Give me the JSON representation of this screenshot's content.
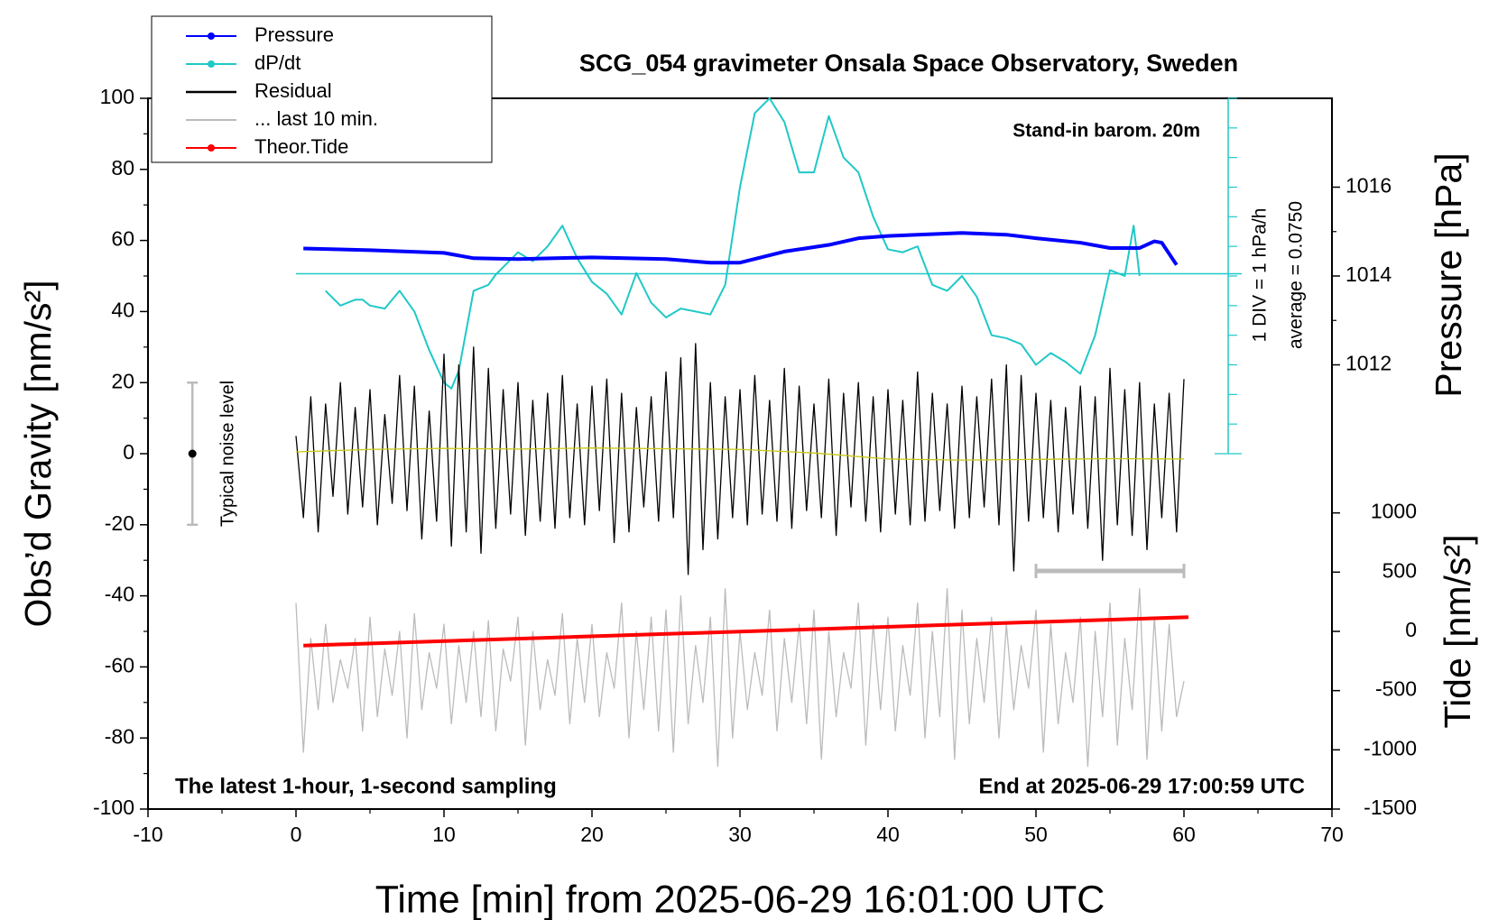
{
  "chart_data": {
    "type": "line",
    "title": "SCG_054 gravimeter Onsala Space Observatory, Sweden",
    "xlabel": "Time [min] from 2025-06-29 16:01:00 UTC",
    "ylabel": "Obs’d Gravity [nm/s²]",
    "y2label": "Pressure [hPa]",
    "y3label": "Tide [nm/s²]",
    "annotation_top": "Stand-in barom. 20m",
    "dpdt_scale_label": "1 DIV = 1 hPa/h",
    "dpdt_average_label": "average = 0.0750",
    "dpdt_average": 0.075,
    "dpdt_lim": [
      -6,
      6
    ],
    "dpdt_ticks": [
      -6,
      -5,
      -4,
      -3,
      -2,
      -1,
      0,
      1,
      2,
      3,
      4,
      5,
      6
    ],
    "footer_left": "The latest 1-hour, 1-second sampling",
    "footer_right": "End at 2025-06-29 17:00:59 UTC",
    "noise_bar": {
      "label": "Typical noise level",
      "x": -7,
      "value": 0,
      "error": 20
    },
    "window_bar": {
      "x": [
        50,
        60
      ],
      "y": -33
    },
    "xlim": [
      -10,
      70
    ],
    "xticks": [
      -10,
      0,
      10,
      20,
      30,
      40,
      50,
      60,
      70
    ],
    "ylim": [
      -100,
      100
    ],
    "yticks": [
      -100,
      -80,
      -60,
      -40,
      -20,
      0,
      20,
      40,
      60,
      80,
      100
    ],
    "y2lim": [
      1002,
      1018
    ],
    "y2ticks": [
      1012,
      1014,
      1016
    ],
    "y3lim": [
      -1500,
      4500
    ],
    "y3ticks": [
      -1500,
      -1000,
      -500,
      0,
      500,
      1000
    ],
    "x": [
      0,
      0.5,
      1,
      1.5,
      2,
      2.5,
      3,
      3.5,
      4,
      4.5,
      5,
      5.5,
      6,
      6.5,
      7,
      7.5,
      8,
      8.5,
      9,
      9.5,
      10,
      10.5,
      11,
      11.5,
      12,
      12.5,
      13,
      13.5,
      14,
      14.5,
      15,
      15.5,
      16,
      16.5,
      17,
      17.5,
      18,
      18.5,
      19,
      19.5,
      20,
      20.5,
      21,
      21.5,
      22,
      22.5,
      23,
      23.5,
      24,
      24.5,
      25,
      25.5,
      26,
      26.5,
      27,
      27.5,
      28,
      28.5,
      29,
      29.5,
      30,
      30.5,
      31,
      31.5,
      32,
      32.5,
      33,
      33.5,
      34,
      34.5,
      35,
      35.5,
      36,
      36.5,
      37,
      37.5,
      38,
      38.5,
      39,
      39.5,
      40,
      40.5,
      41,
      41.5,
      42,
      42.5,
      43,
      43.5,
      44,
      44.5,
      45,
      45.5,
      46,
      46.5,
      47,
      47.5,
      48,
      48.5,
      49,
      49.5,
      50,
      50.5,
      51,
      51.5,
      52,
      52.5,
      53,
      53.5,
      54,
      54.5,
      55,
      55.5,
      56,
      56.5,
      57,
      57.5,
      58,
      58.5,
      59,
      59.5,
      60
    ],
    "series": [
      {
        "name": "Pressure",
        "color": "#0000ff",
        "axis": "y2",
        "markers": true,
        "x": [
          0.5,
          5,
          10,
          12,
          15,
          20,
          25,
          28,
          30,
          33,
          36,
          38,
          40,
          42,
          45,
          48,
          50,
          53,
          55,
          56.5,
          57,
          58,
          58.5,
          59.5
        ],
        "values": [
          1014.62,
          1014.58,
          1014.52,
          1014.4,
          1014.38,
          1014.42,
          1014.38,
          1014.3,
          1014.3,
          1014.55,
          1014.7,
          1014.85,
          1014.9,
          1014.93,
          1014.97,
          1014.93,
          1014.85,
          1014.75,
          1014.63,
          1014.63,
          1014.63,
          1014.78,
          1014.75,
          1014.25
        ]
      },
      {
        "name": "dP/dt",
        "color": "#20c8c8",
        "axis": "dpdt",
        "markers": true,
        "x": [
          2,
          3,
          4,
          4.5,
          5,
          6,
          7,
          8,
          9,
          10,
          10.5,
          11,
          12,
          13,
          13.5,
          14,
          15,
          16,
          17,
          18,
          19,
          19.5,
          20,
          21,
          22,
          23,
          24,
          25,
          26,
          27,
          28,
          29,
          30,
          31,
          32,
          33,
          34,
          35,
          36,
          37,
          38,
          39,
          40,
          41,
          42,
          43,
          44,
          45,
          46,
          47,
          48,
          49,
          50,
          51,
          52,
          53,
          54,
          55,
          56,
          56.6,
          57
        ],
        "values": [
          -0.5,
          -1,
          -0.8,
          -0.8,
          -1,
          -1.1,
          -0.5,
          -1.2,
          -2.5,
          -3.6,
          -3.8,
          -3.2,
          -0.5,
          -0.3,
          0.05,
          0.3,
          0.8,
          0.5,
          1,
          1.7,
          0.6,
          0.2,
          -0.2,
          -0.6,
          -1.3,
          0.1,
          -0.9,
          -1.4,
          -1.1,
          -1.2,
          -1.3,
          -0.3,
          3,
          5.5,
          6,
          5.2,
          3.5,
          3.5,
          5.4,
          4,
          3.5,
          2,
          0.9,
          0.8,
          1,
          -0.3,
          -0.5,
          0,
          -0.7,
          -2,
          -2.1,
          -2.3,
          -3,
          -2.6,
          -2.9,
          -3.3,
          -2,
          0.2,
          0,
          1.7,
          0
        ]
      },
      {
        "name": "Residual",
        "color": "#000000",
        "axis": "y",
        "markers": false,
        "values": [
          5,
          -18,
          16,
          -22,
          14,
          -12,
          20,
          -17,
          13,
          -15,
          18,
          -20,
          11,
          -14,
          22,
          -16,
          19,
          -24,
          12,
          -19,
          28,
          -26,
          25,
          -22,
          30,
          -28,
          24,
          -21,
          18,
          -17,
          20,
          -23,
          15,
          -19,
          17,
          -21,
          22,
          -18,
          14,
          -20,
          19,
          -16,
          21,
          -25,
          17,
          -22,
          13,
          -15,
          16,
          -19,
          23,
          -18,
          27,
          -34,
          31,
          -27,
          20,
          -24,
          16,
          -18,
          18,
          -20,
          22,
          -17,
          15,
          -19,
          24,
          -21,
          19,
          -16,
          14,
          -18,
          21,
          -23,
          17,
          -15,
          20,
          -19,
          16,
          -22,
          18,
          -17,
          15,
          -20,
          23,
          -19,
          17,
          -16,
          14,
          -21,
          19,
          -18,
          16,
          -15,
          21,
          -20,
          25,
          -33,
          22,
          -19,
          17,
          -18,
          15,
          -22,
          13,
          -17,
          19,
          -21,
          16,
          -30,
          24,
          -20,
          18,
          -23,
          20,
          -27,
          14,
          -18,
          17,
          -22,
          21
        ]
      },
      {
        "name": "... last 10 min.",
        "color": "#bbbbbb",
        "axis": "y",
        "markers": false,
        "values": [
          -42,
          -84,
          -52,
          -72,
          -48,
          -70,
          -58,
          -66,
          -52,
          -78,
          -46,
          -74,
          -55,
          -68,
          -50,
          -80,
          -45,
          -72,
          -56,
          -66,
          -48,
          -76,
          -54,
          -70,
          -50,
          -74,
          -47,
          -78,
          -55,
          -64,
          -46,
          -82,
          -50,
          -72,
          -58,
          -68,
          -45,
          -76,
          -52,
          -70,
          -48,
          -74,
          -56,
          -66,
          -42,
          -80,
          -50,
          -72,
          -46,
          -78,
          -44,
          -84,
          -40,
          -76,
          -54,
          -70,
          -46,
          -88,
          -38,
          -80,
          -50,
          -72,
          -56,
          -68,
          -44,
          -78,
          -52,
          -70,
          -48,
          -76,
          -44,
          -86,
          -50,
          -74,
          -56,
          -66,
          -42,
          -82,
          -48,
          -72,
          -46,
          -78,
          -54,
          -68,
          -42,
          -80,
          -50,
          -74,
          -38,
          -86,
          -44,
          -76,
          -52,
          -70,
          -46,
          -80,
          -48,
          -72,
          -54,
          -66,
          -44,
          -84,
          -48,
          -76,
          -56,
          -70,
          -46,
          -88,
          -50,
          -74,
          -42,
          -82,
          -52,
          -72,
          -38,
          -86,
          -46,
          -78,
          -48,
          -74,
          -64
        ]
      },
      {
        "name": "Theor.Tide",
        "color": "#ff0000",
        "axis": "y3",
        "markers": true,
        "x": [
          0.5,
          60.3
        ],
        "values": [
          -120,
          120
        ]
      },
      {
        "color": "#c8c814",
        "axis": "y",
        "markers": false,
        "x": [
          0,
          5,
          10,
          15,
          20,
          25,
          30,
          35,
          40,
          45,
          50,
          55,
          60
        ],
        "values": [
          0.5,
          1.2,
          1.5,
          1.3,
          1.6,
          1.4,
          1.2,
          0.2,
          -1.5,
          -1.8,
          -1.6,
          -1.4,
          -1.5
        ]
      }
    ]
  }
}
